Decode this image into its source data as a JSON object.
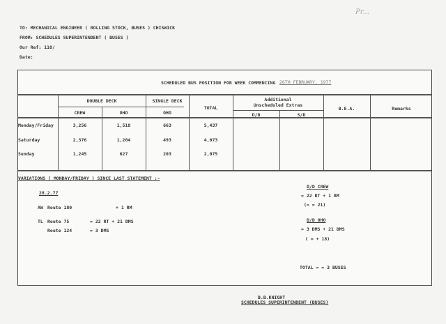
{
  "handwritten_note": "Pr...",
  "header": {
    "to": "TO:   MECHANICAL ENGINEER ( ROLLING STOCK, BUSES )  CHISWICK",
    "from": "FROM: SCHEDULES SUPERINTENDENT ( BUSES )",
    "ref": "Our Ref:  110/",
    "date": "Date:"
  },
  "table": {
    "title": "SCHEDULED BUS POSITION FOR WEEK COMMENCING",
    "week": "26TH FEBRUARY, 1977",
    "columns": {
      "double_deck": "DOUBLE     DECK",
      "single_deck": "SINGLE  DECK",
      "crew": "CREW",
      "oho": "OHO",
      "oho2": "OHO",
      "total": "TOTAL",
      "additional": "Additional",
      "unscheduled": "Unscheduled  Extras",
      "dd": "D/D",
      "sd": "S/D",
      "bea": "B.E.A.",
      "remarks": "Remarks"
    },
    "rows": [
      {
        "label": "Monday/Friday",
        "crew": "3,256",
        "dd_oho": "1,518",
        "sd_oho": "663",
        "total": "5,437"
      },
      {
        "label": "Saturday",
        "crew": "2,376",
        "dd_oho": "1,204",
        "sd_oho": "493",
        "total": "4,073"
      },
      {
        "label": "Sunday",
        "crew": "1,245",
        "dd_oho": "627",
        "sd_oho": "203",
        "total": "2,075"
      }
    ]
  },
  "variations": {
    "title": "VARIATIONS ( MONDAY/FRIDAY ) SINCE LAST STATEMENT :-",
    "date": "28.2.77",
    "lines": [
      {
        "garage": "AW",
        "route": "Route  180",
        "change": "+ 1 RM"
      },
      {
        "garage": "TL",
        "route": "Route   75",
        "change": "= 22 RT + 21 DMS"
      },
      {
        "garage": "",
        "route": "Route  124",
        "change": "= 3 DMS"
      }
    ],
    "dd_crew_title": "D/D CREW",
    "dd_crew_line": "= 22 RT  + 1 RM",
    "dd_crew_net": "(=  = 21)",
    "dd_oho_title": "D/D OHO",
    "dd_oho_line": "= 3 DMS  + 21 DMS",
    "dd_oho_net": "( = + 18)",
    "total": "TOTAL =  = 3 BUSES"
  },
  "signature": {
    "name": "B.B.KNIGHT",
    "title": "SCHEDULES SUPERINTENDENT (BUSES)"
  }
}
